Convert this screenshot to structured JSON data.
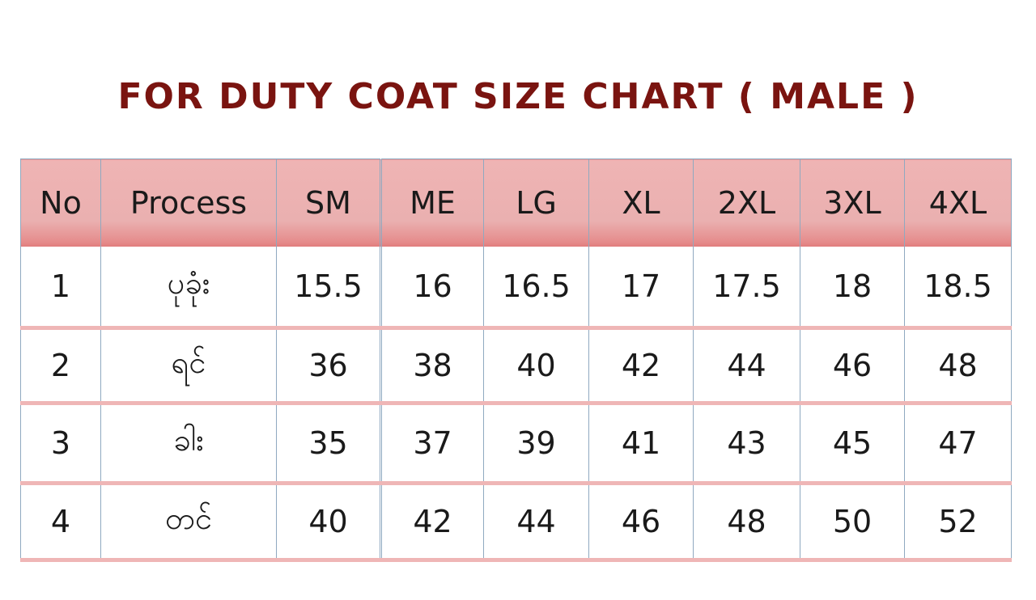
{
  "chart_data": {
    "type": "table",
    "title": "FOR DUTY COAT SIZE CHART ( MALE )",
    "columns": [
      "No",
      "Process",
      "SM",
      "ME",
      "LG",
      "XL",
      "2XL",
      "3XL",
      "4XL"
    ],
    "rows": [
      [
        "1",
        "ပုခုံး",
        "15.5",
        "16",
        "16.5",
        "17",
        "17.5",
        "18",
        "18.5"
      ],
      [
        "2",
        "ရင်",
        "36",
        "38",
        "40",
        "42",
        "44",
        "46",
        "48"
      ],
      [
        "3",
        "ခါး",
        "35",
        "37",
        "39",
        "41",
        "43",
        "45",
        "47"
      ],
      [
        "4",
        "တင်",
        "40",
        "42",
        "44",
        "46",
        "48",
        "50",
        "52"
      ]
    ],
    "colors": {
      "title": "#7a1410",
      "header_bg": "#eab0b0",
      "row_divider": "#efb6b6",
      "grid_line": "#8fa9c0"
    }
  }
}
